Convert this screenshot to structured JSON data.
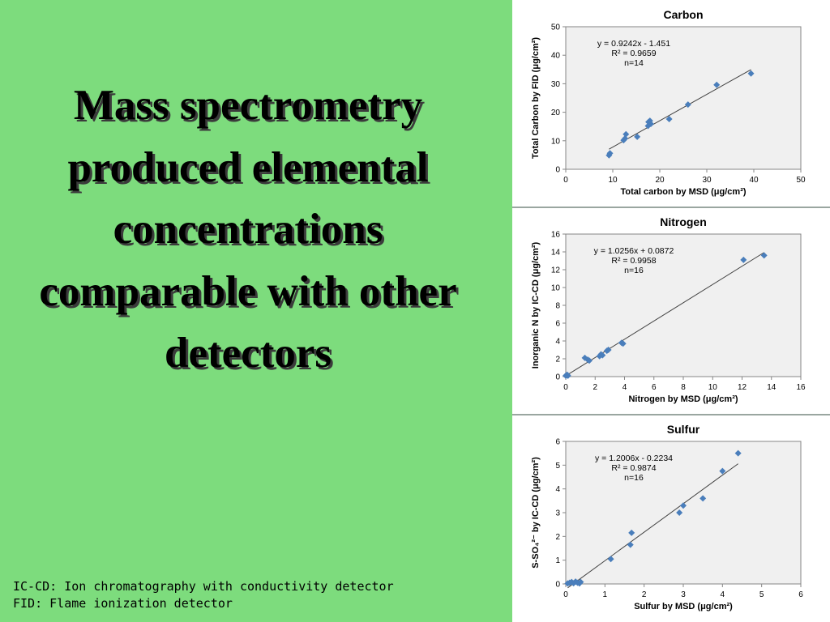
{
  "slide": {
    "headline": "Mass spectrometry produced elemental concentrations comparable with other detectors",
    "footnotes": [
      "IC-CD: Ion chromatography with conductivity detector",
      "FID: Flame ionization detector"
    ]
  },
  "colors": {
    "background": "#7ddc7d",
    "plot_bg": "#f0f0f0",
    "marker": "#4a7ebb",
    "trendline": "#404040"
  },
  "chart_data": [
    {
      "type": "scatter",
      "title": "Carbon",
      "xlabel": "Total carbon by MSD (μg/cm²)",
      "ylabel": "Total Carbon by FID (μg/cm²)",
      "xlim": [
        0,
        50
      ],
      "ylim": [
        0,
        50
      ],
      "xticks": [
        0,
        10,
        20,
        30,
        40,
        50
      ],
      "yticks": [
        0,
        10,
        20,
        30,
        40,
        50
      ],
      "annotation": [
        "y = 0.9242x - 1.451",
        "R² = 0.9659",
        "n=14"
      ],
      "trendline": {
        "slope": 0.9242,
        "intercept": -1.451
      },
      "points": [
        [
          9.2,
          4.9
        ],
        [
          9.4,
          5.6
        ],
        [
          12.3,
          10.2
        ],
        [
          12.6,
          10.8
        ],
        [
          12.8,
          12.3
        ],
        [
          15.2,
          11.4
        ],
        [
          17.5,
          15.2
        ],
        [
          17.6,
          16.6
        ],
        [
          17.9,
          17.0
        ],
        [
          18.1,
          15.9
        ],
        [
          22.0,
          17.6
        ],
        [
          26.0,
          22.7
        ],
        [
          32.1,
          29.6
        ],
        [
          39.4,
          33.6
        ]
      ],
      "grid": false
    },
    {
      "type": "scatter",
      "title": "Nitrogen",
      "xlabel": "Nitrogen by MSD (μg/cm²)",
      "ylabel": "Inorganic N by IC-CD (μg/cm²)",
      "xlim": [
        0,
        16
      ],
      "ylim": [
        0,
        16
      ],
      "xticks": [
        0,
        2,
        4,
        6,
        8,
        10,
        12,
        14,
        16
      ],
      "yticks": [
        0,
        2,
        4,
        6,
        8,
        10,
        12,
        14,
        16
      ],
      "annotation": [
        "y = 1.0256x + 0.0872",
        "R² = 0.9958",
        "n=16"
      ],
      "trendline": {
        "slope": 1.0256,
        "intercept": 0.0872
      },
      "points": [
        [
          0.0,
          0.1
        ],
        [
          0.05,
          0.15
        ],
        [
          0.1,
          0.2
        ],
        [
          0.15,
          0.1
        ],
        [
          1.3,
          2.1
        ],
        [
          1.5,
          1.9
        ],
        [
          1.6,
          1.8
        ],
        [
          2.3,
          2.3
        ],
        [
          2.4,
          2.5
        ],
        [
          2.5,
          2.4
        ],
        [
          2.8,
          2.9
        ],
        [
          2.9,
          3.0
        ],
        [
          3.8,
          3.8
        ],
        [
          3.9,
          3.7
        ],
        [
          12.1,
          13.1
        ],
        [
          13.5,
          13.6
        ]
      ],
      "grid": false
    },
    {
      "type": "scatter",
      "title": "Sulfur",
      "xlabel": "Sulfur by MSD (μg/cm²)",
      "ylabel": "S-SO₄²⁻ by IC-CD (μg/cm²)",
      "xlim": [
        0,
        6
      ],
      "ylim": [
        0,
        6
      ],
      "xticks": [
        0,
        1,
        2,
        3,
        4,
        5,
        6
      ],
      "yticks": [
        0,
        1,
        2,
        3,
        4,
        5,
        6
      ],
      "annotation": [
        "y = 1.2006x - 0.2234",
        "R² = 0.9874",
        "n=16"
      ],
      "trendline": {
        "slope": 1.2006,
        "intercept": -0.2234
      },
      "points": [
        [
          0.05,
          0.02
        ],
        [
          0.1,
          0.05
        ],
        [
          0.15,
          0.08
        ],
        [
          0.2,
          0.03
        ],
        [
          0.25,
          0.1
        ],
        [
          0.3,
          0.05
        ],
        [
          0.35,
          0.02
        ],
        [
          0.38,
          0.08
        ],
        [
          1.15,
          1.05
        ],
        [
          1.65,
          1.65
        ],
        [
          1.68,
          2.15
        ],
        [
          2.9,
          3.0
        ],
        [
          3.0,
          3.3
        ],
        [
          3.5,
          3.6
        ],
        [
          4.0,
          4.75
        ],
        [
          4.4,
          5.5
        ]
      ],
      "grid": false
    }
  ]
}
